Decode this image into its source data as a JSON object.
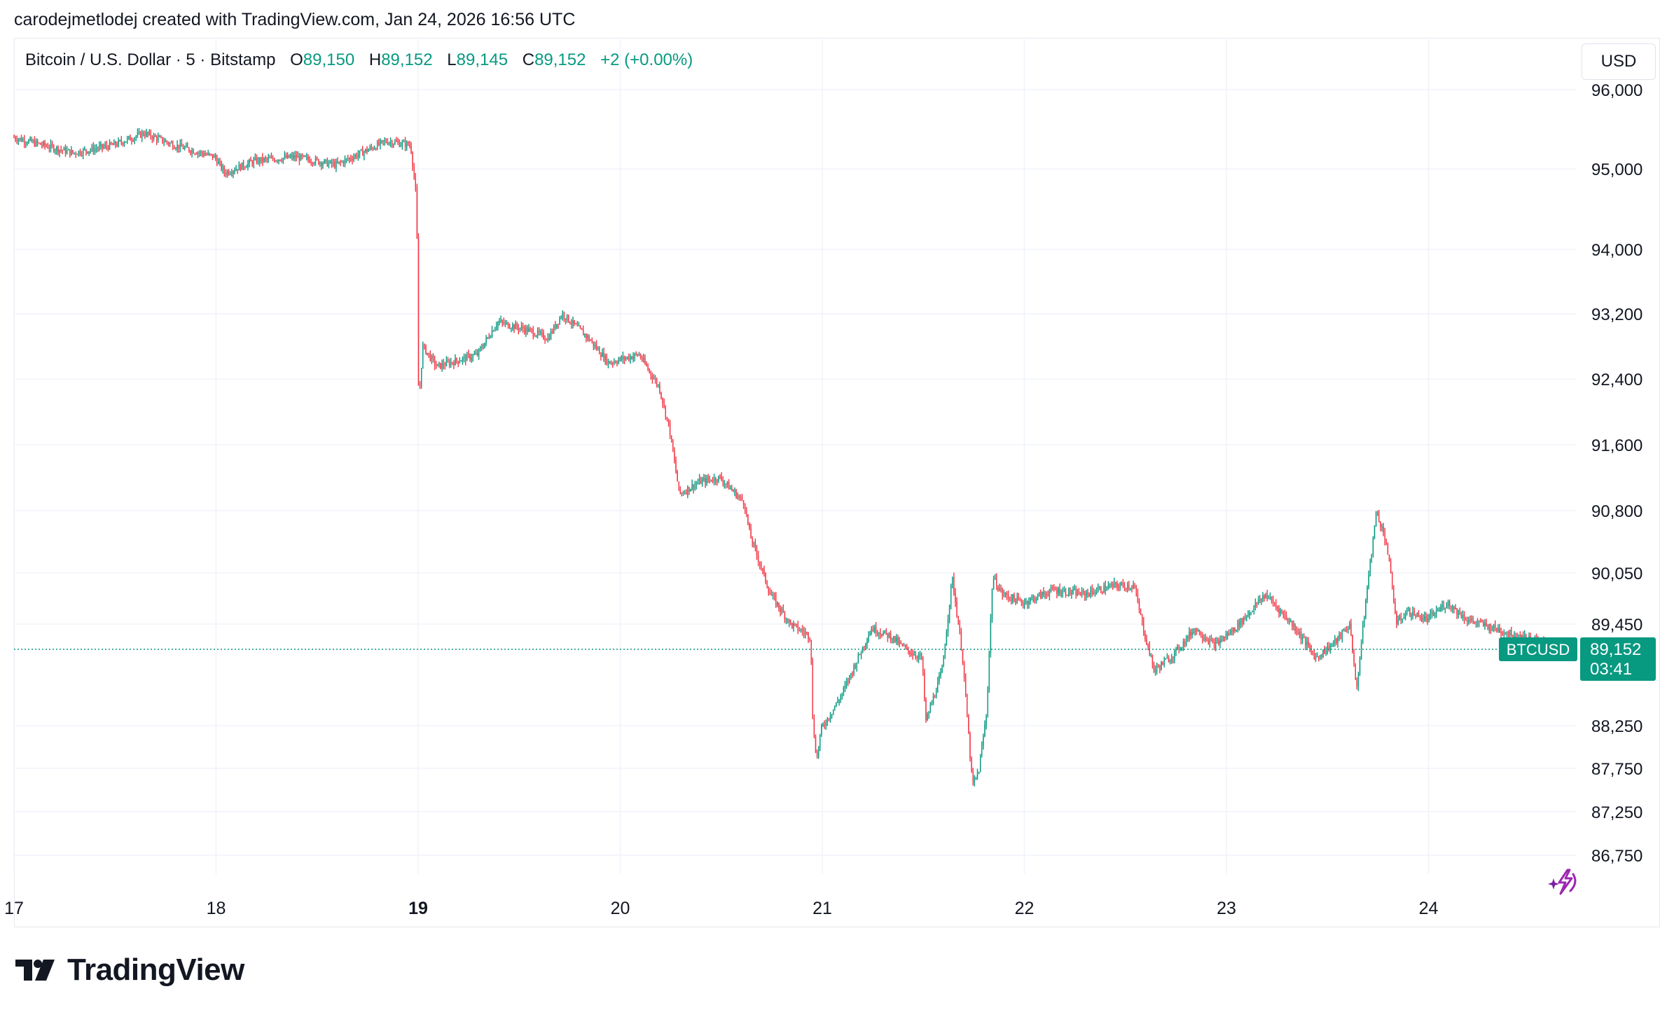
{
  "caption": "carodejmetlodej created with TradingView.com, Jan 24, 2026 16:56 UTC",
  "header": {
    "symbol": "Bitcoin / U.S. Dollar · 5 · Bitstamp",
    "open_label": "O",
    "open": "89,150",
    "high_label": "H",
    "high": "89,152",
    "low_label": "L",
    "low": "89,145",
    "close_label": "C",
    "close": "89,152",
    "change": "+2 (+0.00%)"
  },
  "currency_button": "USD",
  "price_tag": {
    "symbol": "BTCUSD",
    "price": "89,152",
    "countdown": "03:41"
  },
  "brand": "TradingView",
  "icons": [
    "tradingview-logo-icon",
    "sparkle-bolt-icon"
  ],
  "colors": {
    "up": "#089981",
    "down": "#f23645",
    "grid": "#f0f3fa",
    "accent": "#089981",
    "sparkle": "#9c27b0"
  },
  "chart_data": {
    "type": "candlestick",
    "timeframe": "5",
    "y_ticks": [
      86750,
      87250,
      87750,
      88250,
      89450,
      90050,
      90800,
      91600,
      92400,
      93200,
      94000,
      95000,
      96000
    ],
    "y_tick_labels": [
      "86,750",
      "87,250",
      "87,750",
      "88,250",
      "89,450",
      "90,050",
      "90,800",
      "91,600",
      "92,400",
      "93,200",
      "94,000",
      "95,000",
      "96,000"
    ],
    "x_ticks": [
      "17",
      "18",
      "19",
      "20",
      "21",
      "22",
      "23",
      "24"
    ],
    "x_ticks_bold": [
      "19"
    ],
    "ylim": [
      86500,
      96200
    ],
    "last_price": 89152,
    "grid": true,
    "price_path": [
      [
        17.0,
        95400
      ],
      [
        17.3,
        95200
      ],
      [
        17.5,
        95300
      ],
      [
        17.65,
        95450
      ],
      [
        17.8,
        95300
      ],
      [
        18.0,
        95150
      ],
      [
        18.05,
        94950
      ],
      [
        18.2,
        95100
      ],
      [
        18.4,
        95150
      ],
      [
        18.6,
        95050
      ],
      [
        18.85,
        95350
      ],
      [
        18.97,
        95300
      ],
      [
        19.0,
        94600
      ],
      [
        19.005,
        93200
      ],
      [
        19.01,
        92100
      ],
      [
        19.03,
        92800
      ],
      [
        19.1,
        92550
      ],
      [
        19.3,
        92700
      ],
      [
        19.4,
        93100
      ],
      [
        19.55,
        93000
      ],
      [
        19.65,
        92900
      ],
      [
        19.72,
        93200
      ],
      [
        19.85,
        92900
      ],
      [
        19.95,
        92600
      ],
      [
        20.1,
        92700
      ],
      [
        20.2,
        92300
      ],
      [
        20.25,
        91800
      ],
      [
        20.3,
        91000
      ],
      [
        20.4,
        91150
      ],
      [
        20.5,
        91200
      ],
      [
        20.62,
        90900
      ],
      [
        20.65,
        90500
      ],
      [
        20.75,
        89800
      ],
      [
        20.85,
        89450
      ],
      [
        20.95,
        89300
      ],
      [
        20.96,
        88300
      ],
      [
        20.98,
        87850
      ],
      [
        21.0,
        88200
      ],
      [
        21.1,
        88600
      ],
      [
        21.25,
        89400
      ],
      [
        21.35,
        89300
      ],
      [
        21.42,
        89150
      ],
      [
        21.5,
        89050
      ],
      [
        21.52,
        88300
      ],
      [
        21.6,
        88900
      ],
      [
        21.65,
        90000
      ],
      [
        21.7,
        89100
      ],
      [
        21.75,
        87550
      ],
      [
        21.78,
        87700
      ],
      [
        21.82,
        88400
      ],
      [
        21.85,
        90000
      ],
      [
        21.9,
        89800
      ],
      [
        22.0,
        89700
      ],
      [
        22.15,
        89850
      ],
      [
        22.3,
        89800
      ],
      [
        22.45,
        89900
      ],
      [
        22.55,
        89900
      ],
      [
        22.6,
        89350
      ],
      [
        22.65,
        88900
      ],
      [
        22.75,
        89100
      ],
      [
        22.85,
        89400
      ],
      [
        22.95,
        89200
      ],
      [
        23.05,
        89400
      ],
      [
        23.2,
        89800
      ],
      [
        23.35,
        89400
      ],
      [
        23.45,
        89050
      ],
      [
        23.55,
        89250
      ],
      [
        23.62,
        89450
      ],
      [
        23.65,
        88650
      ],
      [
        23.7,
        89800
      ],
      [
        23.75,
        90800
      ],
      [
        23.8,
        90400
      ],
      [
        23.85,
        89450
      ],
      [
        23.9,
        89600
      ],
      [
        24.0,
        89500
      ],
      [
        24.1,
        89700
      ],
      [
        24.2,
        89500
      ],
      [
        24.4,
        89350
      ],
      [
        24.6,
        89200
      ],
      [
        24.67,
        89152
      ]
    ]
  }
}
